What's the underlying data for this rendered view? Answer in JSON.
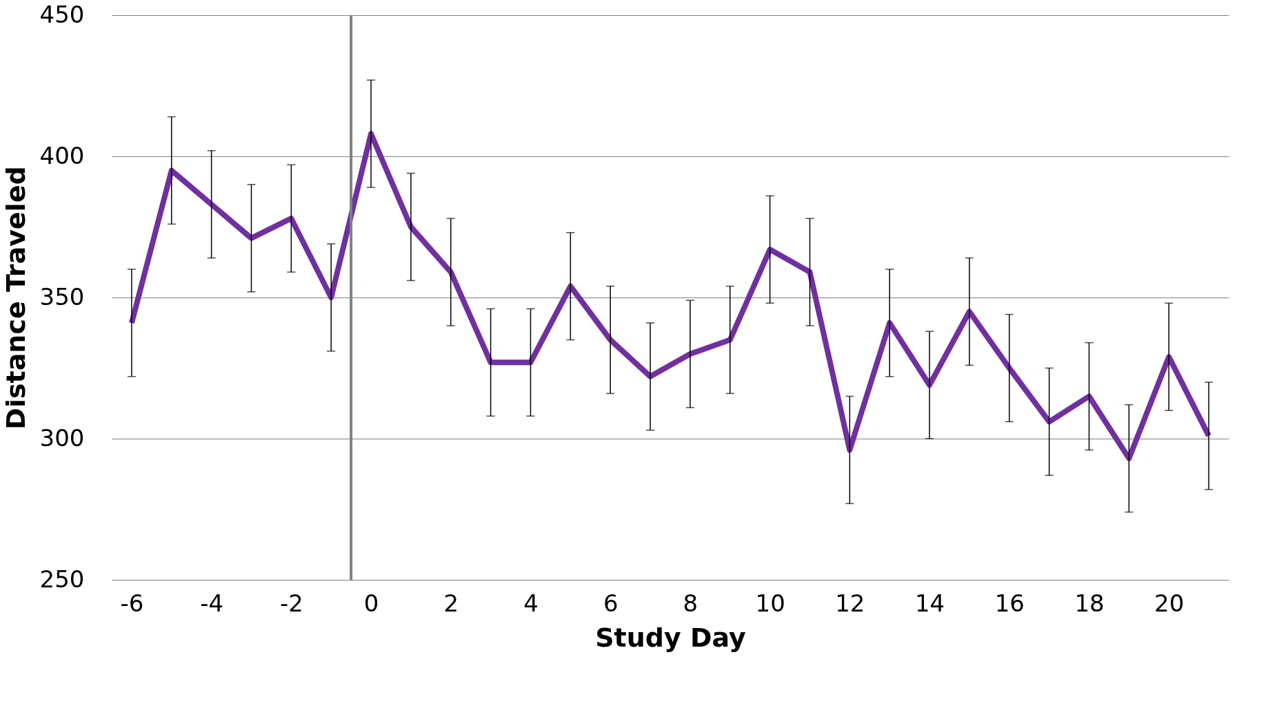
{
  "chart_data": {
    "type": "line",
    "xlabel": "Study Day",
    "ylabel": "Distance Traveled",
    "x": [
      -6,
      -5,
      -4,
      -3,
      -2,
      -1,
      0,
      1,
      2,
      3,
      4,
      5,
      6,
      7,
      8,
      9,
      10,
      11,
      12,
      13,
      14,
      15,
      16,
      17,
      18,
      19,
      20,
      21
    ],
    "series": [
      {
        "color": "#7030a0",
        "values": [
          341,
          395,
          383,
          371,
          378,
          350,
          408,
          375,
          359,
          327,
          327,
          354,
          335,
          322,
          330,
          335,
          367,
          359,
          296,
          341,
          319,
          345,
          325,
          306,
          315,
          293,
          329,
          301
        ],
        "errors": [
          19,
          19,
          19,
          19,
          19,
          19,
          19,
          19,
          19,
          19,
          19,
          19,
          19,
          19,
          19,
          19,
          19,
          19,
          19,
          19,
          19,
          19,
          19,
          19,
          19,
          19,
          19,
          19
        ]
      }
    ],
    "xlim": [
      -6.5,
      21.5
    ],
    "xticks": [
      -6,
      -4,
      -2,
      0,
      2,
      4,
      6,
      8,
      10,
      12,
      14,
      16,
      18,
      20
    ],
    "ylim": [
      250,
      450
    ],
    "yticks": [
      250,
      300,
      350,
      400,
      450
    ],
    "ref_lines": [
      {
        "axis": "x",
        "value": -0.5,
        "label": null,
        "color": "#808080"
      }
    ],
    "grid": "y",
    "marker": "none",
    "line_style": "solid"
  }
}
